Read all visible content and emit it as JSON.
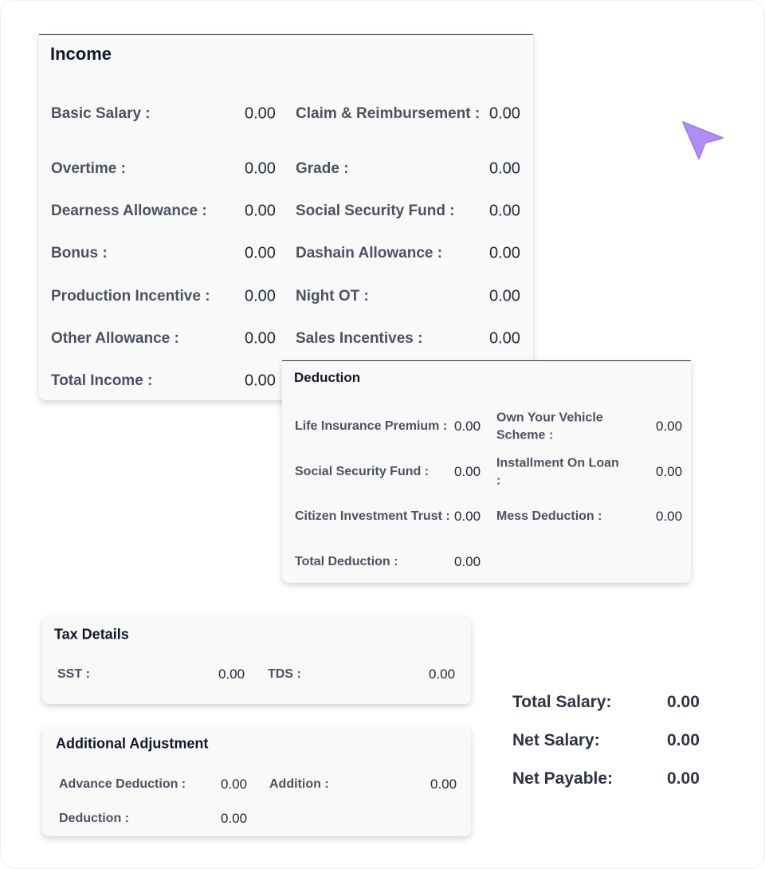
{
  "income": {
    "title": "Income",
    "items": [
      {
        "label": "Basic Salary :",
        "value": "0.00"
      },
      {
        "label": "Claim & Reimbursement :",
        "value": "0.00"
      },
      {
        "label": "Overtime :",
        "value": "0.00"
      },
      {
        "label": "Grade :",
        "value": "0.00"
      },
      {
        "label": "Dearness Allowance :",
        "value": "0.00"
      },
      {
        "label": "Social Security Fund :",
        "value": "0.00"
      },
      {
        "label": "Bonus :",
        "value": "0.00"
      },
      {
        "label": "Dashain Allowance :",
        "value": "0.00"
      },
      {
        "label": "Production Incentive :",
        "value": "0.00"
      },
      {
        "label": "Night OT :",
        "value": "0.00"
      },
      {
        "label": "Other Allowance :",
        "value": "0.00"
      },
      {
        "label": "Sales Incentives :",
        "value": "0.00"
      },
      {
        "label": "Total Income :",
        "value": "0.00"
      }
    ]
  },
  "deduction": {
    "title": "Deduction",
    "items": [
      {
        "label": "Life Insurance Premium :",
        "value": "0.00"
      },
      {
        "label": "Own Your Vehicle Scheme :",
        "value": "0.00"
      },
      {
        "label": "Social Security Fund :",
        "value": "0.00"
      },
      {
        "label": "Installment On Loan :",
        "value": "0.00"
      },
      {
        "label": "Citizen Investment Trust :",
        "value": "0.00"
      },
      {
        "label": "Mess Deduction :",
        "value": "0.00"
      },
      {
        "label": "Total Deduction :",
        "value": "0.00"
      }
    ]
  },
  "tax_details": {
    "title": "Tax Details",
    "items": [
      {
        "label": "SST :",
        "value": "0.00"
      },
      {
        "label": "TDS :",
        "value": "0.00"
      }
    ]
  },
  "additional_adjustment": {
    "title": "Additional Adjustment",
    "items": [
      {
        "label": "Advance Deduction :",
        "value": "0.00"
      },
      {
        "label": "Addition :",
        "value": "0.00"
      },
      {
        "label": "Deduction :",
        "value": "0.00"
      }
    ]
  },
  "totals": [
    {
      "label": "Total Salary:",
      "value": "0.00"
    },
    {
      "label": "Net Salary:",
      "value": "0.00"
    },
    {
      "label": "Net Payable:",
      "value": "0.00"
    }
  ]
}
